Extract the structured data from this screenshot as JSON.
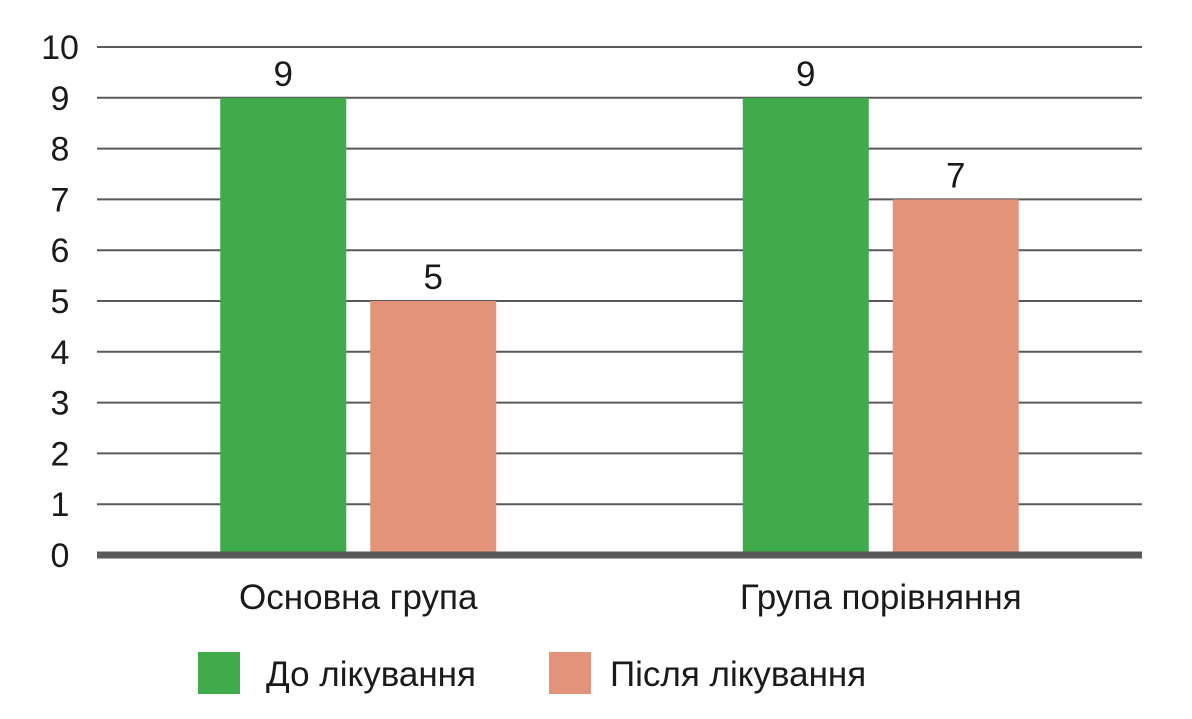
{
  "chart_data": {
    "type": "bar",
    "title": "",
    "xlabel": "",
    "ylabel": "",
    "categories": [
      "Основна група",
      "Група порівняння"
    ],
    "series": [
      {
        "name": "До лікування",
        "values": [
          9,
          9
        ],
        "color": "#3fab4b"
      },
      {
        "name": "Після лікування",
        "values": [
          5,
          7
        ],
        "color": "#e3937a"
      }
    ],
    "ylim": [
      0,
      10
    ],
    "yticks": [
      0,
      1,
      2,
      3,
      4,
      5,
      6,
      7,
      8,
      9,
      10
    ],
    "grid": true,
    "legend_position": "bottom",
    "data_labels": true,
    "colors": {
      "grid": "#595959",
      "baseline": "#595959",
      "text": "#1a1a1a"
    }
  }
}
